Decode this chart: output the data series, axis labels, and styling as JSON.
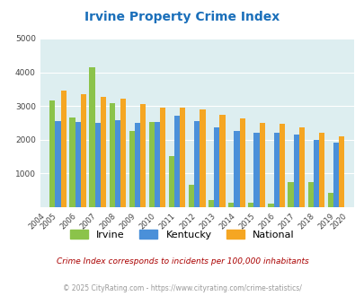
{
  "title": "Irvine Property Crime Index",
  "years": [
    2004,
    2005,
    2006,
    2007,
    2008,
    2009,
    2010,
    2011,
    2012,
    2013,
    2014,
    2015,
    2016,
    2017,
    2018,
    2019,
    2020
  ],
  "irvine": [
    null,
    3150,
    2650,
    4150,
    3080,
    2250,
    2520,
    1520,
    670,
    220,
    120,
    120,
    100,
    750,
    750,
    420,
    null
  ],
  "kentucky": [
    null,
    2540,
    2530,
    2500,
    2570,
    2490,
    2530,
    2700,
    2540,
    2360,
    2260,
    2200,
    2200,
    2140,
    1990,
    1920,
    null
  ],
  "national": [
    null,
    3460,
    3360,
    3270,
    3220,
    3050,
    2960,
    2940,
    2890,
    2740,
    2620,
    2490,
    2460,
    2360,
    2200,
    2110,
    null
  ],
  "irvine_color": "#8bc34a",
  "kentucky_color": "#4a90d9",
  "national_color": "#f5a623",
  "bg_color": "#ddeef0",
  "ylim": [
    0,
    5000
  ],
  "yticks": [
    0,
    1000,
    2000,
    3000,
    4000,
    5000
  ],
  "subtitle": "Crime Index corresponds to incidents per 100,000 inhabitants",
  "footer": "© 2025 CityRating.com - https://www.cityrating.com/crime-statistics/",
  "title_color": "#1a6fba",
  "subtitle_color": "#aa0000",
  "footer_color": "#999999"
}
